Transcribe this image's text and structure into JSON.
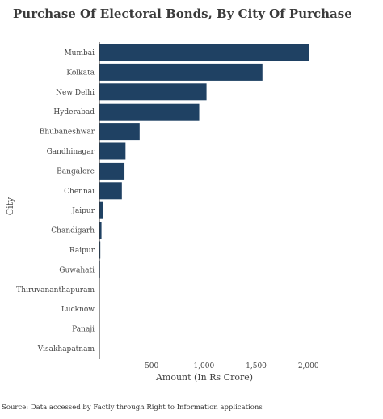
{
  "chart_data": {
    "type": "bar",
    "orientation": "horizontal",
    "title": "Purchase Of Electoral Bonds, By City Of Purchase",
    "xlabel": "Amount (In Rs Crore)",
    "ylabel": "City",
    "categories": [
      "Mumbai",
      "Kolkata",
      "New Delhi",
      "Hyderabad",
      "Bhubaneshwar",
      "Gandhinagar",
      "Bangalore",
      "Chennai",
      "Jaipur",
      "Chandigarh",
      "Raipur",
      "Guwahati",
      "Thiruvananthapuram",
      "Lucknow",
      "Panaji",
      "Visakhapatnam"
    ],
    "values": [
      2010,
      1560,
      1025,
      955,
      385,
      250,
      240,
      215,
      31,
      20,
      9,
      6,
      2,
      1,
      0.5,
      0.3
    ],
    "xticks": [
      500,
      1000,
      1500,
      2000
    ],
    "xtick_labels": [
      "500",
      "1,000",
      "1,500",
      "2,000"
    ],
    "xlim": [
      0,
      2010
    ],
    "bar_color": "#1f4163",
    "grid": false
  },
  "source": "Source: Data accessed by Factly through Right to Information applications"
}
